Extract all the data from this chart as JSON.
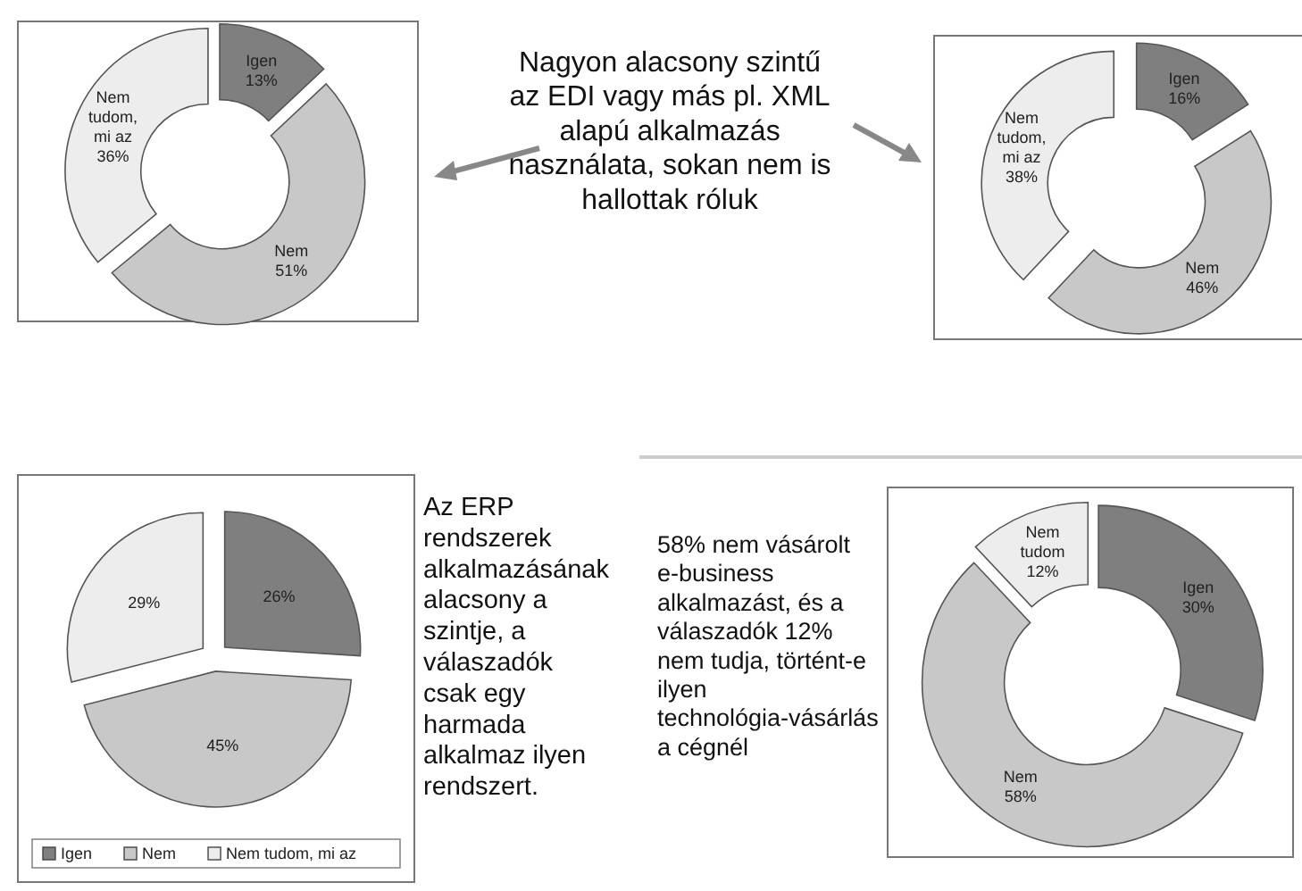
{
  "chart_data": [
    {
      "type": "donut",
      "categories": [
        "Igen",
        "Nem",
        "Nem tudom, mi az"
      ],
      "values": [
        13,
        51,
        36
      ],
      "value_labels": [
        "13%",
        "51%",
        "36%"
      ],
      "colors": [
        "#7f7f7f",
        "#c8c8c8",
        "#ededed"
      ],
      "annotations": [
        "Nagyon alacsony szintű az EDI vagy más pl. XML alapú alkalmazás használata, sokan nem is hallottak róluk"
      ]
    },
    {
      "type": "donut",
      "categories": [
        "Igen",
        "Nem",
        "Nem tudom, mi az"
      ],
      "values": [
        16,
        46,
        38
      ],
      "value_labels": [
        "16%",
        "46%",
        "38%"
      ],
      "colors": [
        "#7f7f7f",
        "#c8c8c8",
        "#ededed"
      ]
    },
    {
      "type": "pie",
      "categories": [
        "Igen",
        "Nem",
        "Nem tudom, mi az"
      ],
      "values": [
        26,
        45,
        29
      ],
      "value_labels": [
        "26%",
        "45%",
        "29%"
      ],
      "colors": [
        "#7f7f7f",
        "#c8c8c8",
        "#ededed"
      ],
      "legend": "bottom",
      "annotations": [
        "Az ERP rendszerek alkalmazásának alacsony a szintje, a válaszadók csak egy harmada alkalmaz ilyen rendszert."
      ]
    },
    {
      "type": "donut",
      "categories": [
        "Igen",
        "Nem",
        "Nem tudom"
      ],
      "values": [
        30,
        58,
        12
      ],
      "value_labels": [
        "30%",
        "58%",
        "12%"
      ],
      "colors": [
        "#7f7f7f",
        "#c8c8c8",
        "#ededed"
      ],
      "annotations": [
        "58% nem vásárolt e-business alkalmazást, és a válaszadók 12% nem tudja, történt-e ilyen technológia-vásárlás a cégnél"
      ]
    }
  ]
}
